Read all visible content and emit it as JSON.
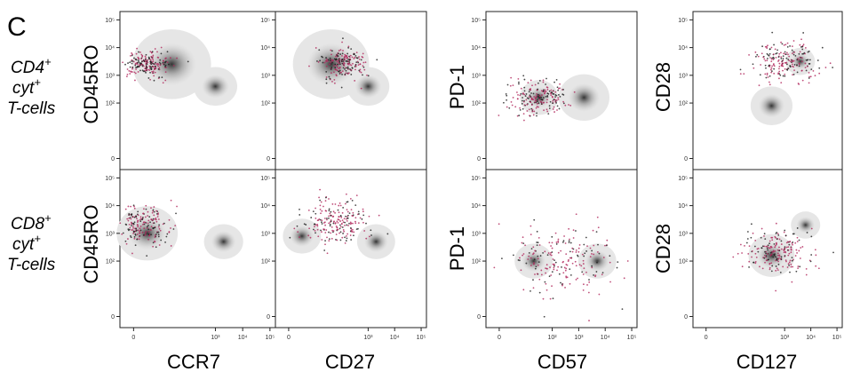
{
  "panel_label": "C",
  "row_labels": [
    {
      "base": "CD4",
      "sup": "+",
      "line2": "cyt",
      "line2_sup": "+",
      "line3": "T-cells"
    },
    {
      "base": "CD8",
      "sup": "+",
      "line2": "cyt",
      "line2_sup": "+",
      "line3": "T-cells"
    }
  ],
  "y_ticks": [
    "10⁵",
    "10⁴",
    "10³",
    "10²",
    "0"
  ],
  "x_ticks": [
    "0",
    "10³",
    "10⁴",
    "10⁵"
  ],
  "cd57_x_ticks": [
    "0",
    "10²",
    "10³",
    "10⁴",
    "10⁵"
  ],
  "colors": {
    "population": "#b0245a",
    "density": "#2a2a2a",
    "event": "#1a1a1a"
  },
  "chart_data": [
    {
      "type": "scatter",
      "id": "cd4-ccr7",
      "xlabel": "CCR7",
      "ylabel": "CD45RO",
      "row": "CD4+ cyt+ T-cells",
      "density": [
        {
          "x": 1.4,
          "y": 3.4,
          "s": 0.9
        },
        {
          "x": 3.0,
          "y": 2.6,
          "s": 0.5
        }
      ],
      "population": [
        {
          "x": 0.5,
          "y": 3.4,
          "s": 0.35
        }
      ]
    },
    {
      "type": "scatter",
      "id": "cd4-cd27",
      "xlabel": "CD27",
      "ylabel": "CD45RO",
      "row": "CD4+ cyt+ T-cells",
      "density": [
        {
          "x": 1.6,
          "y": 3.4,
          "s": 0.9
        },
        {
          "x": 3.0,
          "y": 2.6,
          "s": 0.5
        }
      ],
      "population": [
        {
          "x": 2.0,
          "y": 3.45,
          "s": 0.4
        }
      ]
    },
    {
      "type": "scatter",
      "id": "cd4-cd57",
      "xlabel": "CD57",
      "ylabel": "PD-1",
      "row": "CD4+ cyt+ T-cells",
      "density": [
        {
          "x": 1.5,
          "y": 2.2,
          "s": 0.45
        },
        {
          "x": 3.2,
          "y": 2.2,
          "s": 0.6
        }
      ],
      "population": [
        {
          "x": 1.5,
          "y": 2.2,
          "s": 0.45
        }
      ]
    },
    {
      "type": "scatter",
      "id": "cd4-cd127",
      "xlabel": "CD127",
      "ylabel": "CD28",
      "row": "CD4+ cyt+ T-cells",
      "density": [
        {
          "x": 3.6,
          "y": 3.5,
          "s": 0.35
        },
        {
          "x": 2.5,
          "y": 1.9,
          "s": 0.5
        }
      ],
      "population": [
        {
          "x": 3.0,
          "y": 3.5,
          "s": 0.55
        }
      ]
    },
    {
      "type": "scatter",
      "id": "cd8-ccr7",
      "xlabel": "CCR7",
      "ylabel": "CD45RO",
      "row": "CD8+ cyt+ T-cells",
      "density": [
        {
          "x": 0.5,
          "y": 3.0,
          "s": 0.7
        },
        {
          "x": 3.3,
          "y": 2.7,
          "s": 0.45
        }
      ],
      "population": [
        {
          "x": 0.3,
          "y": 3.3,
          "s": 0.5
        }
      ]
    },
    {
      "type": "scatter",
      "id": "cd8-cd27",
      "xlabel": "CD27",
      "ylabel": "CD45RO",
      "row": "CD8+ cyt+ T-cells",
      "density": [
        {
          "x": 0.5,
          "y": 2.9,
          "s": 0.45
        },
        {
          "x": 3.3,
          "y": 2.7,
          "s": 0.45
        }
      ],
      "population": [
        {
          "x": 1.8,
          "y": 3.4,
          "s": 0.6
        }
      ]
    },
    {
      "type": "scatter",
      "id": "cd8-cd57",
      "xlabel": "CD57",
      "ylabel": "PD-1",
      "row": "CD8+ cyt+ T-cells",
      "density": [
        {
          "x": 1.3,
          "y": 2.0,
          "s": 0.45
        },
        {
          "x": 3.7,
          "y": 2.0,
          "s": 0.45
        }
      ],
      "population": [
        {
          "x": 2.5,
          "y": 2.0,
          "s": 0.9
        }
      ]
    },
    {
      "type": "scatter",
      "id": "cd8-cd127",
      "xlabel": "CD127",
      "ylabel": "CD28",
      "row": "CD8+ cyt+ T-cells",
      "density": [
        {
          "x": 2.5,
          "y": 2.2,
          "s": 0.55
        },
        {
          "x": 3.8,
          "y": 3.3,
          "s": 0.35
        }
      ],
      "population": [
        {
          "x": 2.7,
          "y": 2.3,
          "s": 0.55
        }
      ]
    }
  ]
}
